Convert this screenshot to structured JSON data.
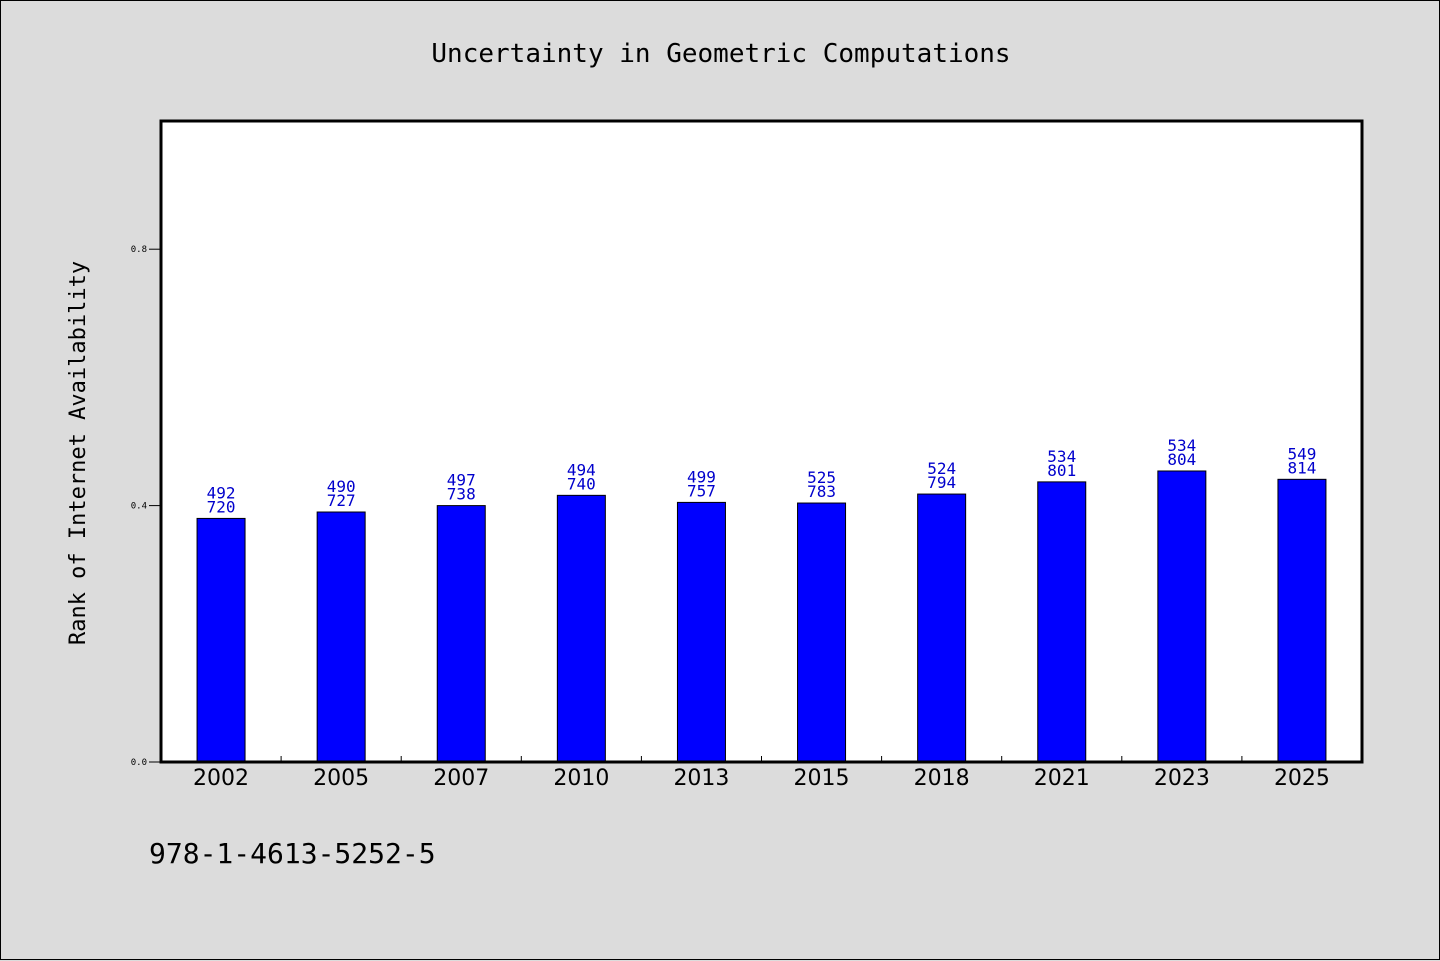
{
  "chart_data": {
    "type": "bar",
    "title": "Uncertainty in Geometric Computations",
    "xlabel": "",
    "ylabel": "Rank of Internet Availability",
    "categories": [
      "2002",
      "2005",
      "2007",
      "2010",
      "2013",
      "2015",
      "2018",
      "2021",
      "2023",
      "2025"
    ],
    "values": [
      0.38,
      0.39,
      0.4,
      0.416,
      0.405,
      0.404,
      0.418,
      0.437,
      0.454,
      0.441
    ],
    "bar_labels_top": [
      "492",
      "490",
      "497",
      "494",
      "499",
      "525",
      "524",
      "534",
      "534",
      "549"
    ],
    "bar_labels_bottom": [
      "720",
      "727",
      "738",
      "740",
      "757",
      "783",
      "794",
      "801",
      "804",
      "814"
    ],
    "yticks": [
      0.0,
      0.4,
      0.8
    ],
    "ytick_labels": [
      "0.0",
      "0.4",
      "0.8"
    ],
    "ylim": [
      0,
      1.0
    ],
    "grid": false,
    "colors": {
      "bar": "#0000ff",
      "label": "#0000cc",
      "background": "#dcdcdc",
      "plot_bg": "#ffffff"
    }
  },
  "footer": {
    "isbn": "978-1-4613-5252-5"
  }
}
